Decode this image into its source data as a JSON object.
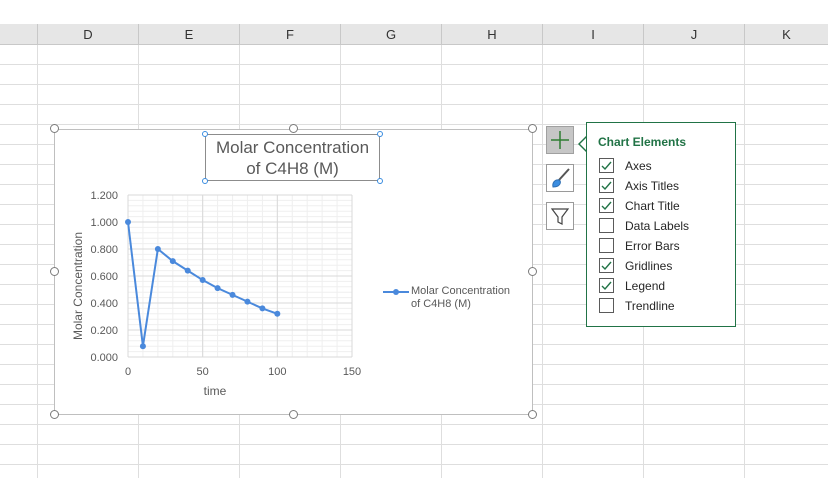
{
  "columns": [
    "D",
    "E",
    "F",
    "G",
    "H",
    "I",
    "J",
    "K"
  ],
  "chart": {
    "title_line1": "Molar Concentration",
    "title_line2": "of C4H8 (M)",
    "legend_line1": "Molar Concentration",
    "legend_line2": "of C4H8 (M)",
    "line_color": "#4a89dc"
  },
  "chart_data": {
    "type": "line",
    "xlabel": "time",
    "ylabel": "Molar Concentration",
    "x": [
      0,
      10,
      20,
      30,
      40,
      50,
      60,
      70,
      80,
      90,
      100
    ],
    "series": [
      {
        "name": "Molar Concentration of C4H8 (M)",
        "values": [
          1.0,
          0.08,
          0.8,
          0.71,
          0.64,
          0.57,
          0.51,
          0.46,
          0.41,
          0.36,
          0.32
        ]
      }
    ],
    "xlim": [
      0,
      150
    ],
    "ylim": [
      0,
      1.2
    ],
    "xticks": [
      "0",
      "50",
      "100",
      "150"
    ],
    "yticks": [
      "0.000",
      "0.200",
      "0.400",
      "0.600",
      "0.800",
      "1.000",
      "1.200"
    ],
    "grid": true,
    "legend": "right"
  },
  "side_buttons": [
    "chart-elements",
    "chart-styles",
    "chart-filters"
  ],
  "chart_elements_panel": {
    "title": "Chart Elements",
    "accent": "#217346",
    "options": [
      {
        "label": "Axes",
        "checked": true
      },
      {
        "label": "Axis Titles",
        "checked": true
      },
      {
        "label": "Chart Title",
        "checked": true
      },
      {
        "label": "Data Labels",
        "checked": false
      },
      {
        "label": "Error Bars",
        "checked": false
      },
      {
        "label": "Gridlines",
        "checked": true
      },
      {
        "label": "Legend",
        "checked": true
      },
      {
        "label": "Trendline",
        "checked": false
      }
    ]
  }
}
